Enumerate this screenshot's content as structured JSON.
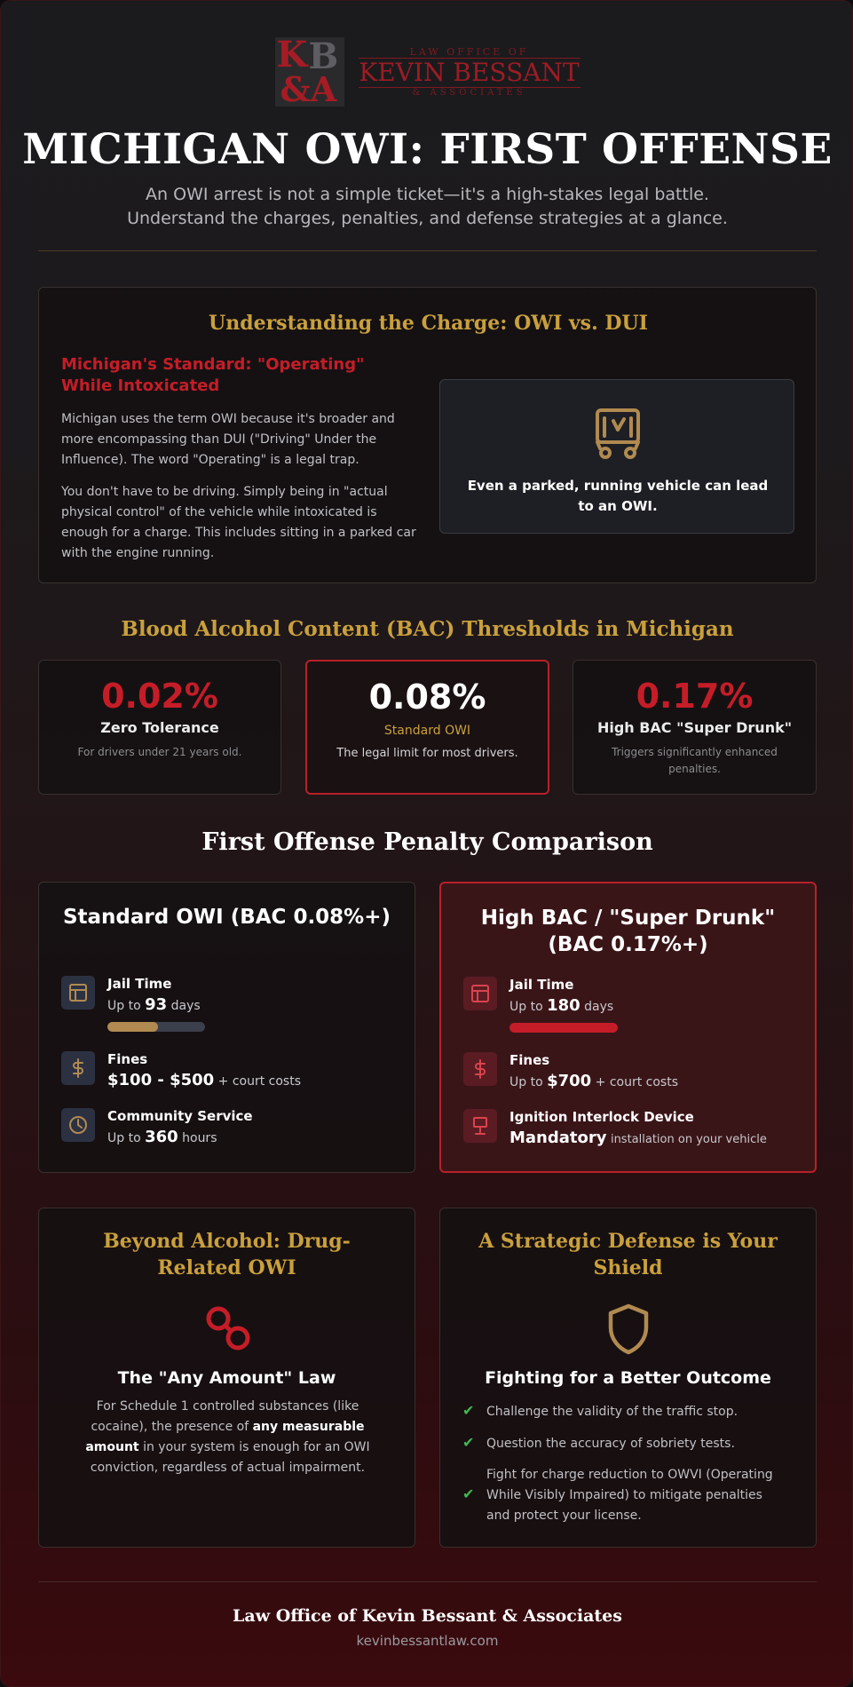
{
  "logo": {
    "monogram_k": "K",
    "monogram_b": "B",
    "monogram_amp": "&A",
    "line1": "LAW OFFICE OF",
    "line2": "KEVIN BESSANT",
    "line3": "& ASSOCIATES"
  },
  "header": {
    "title": "MICHIGAN OWI: FIRST OFFENSE",
    "subtitle_line1": "An OWI arrest is not a simple ticket—it's a high-stakes legal battle.",
    "subtitle_line2": "Understand the charges, penalties, and defense strategies at a glance."
  },
  "charge_section": {
    "title": "Understanding the Charge: OWI vs. DUI",
    "subtitle": "Michigan's Standard: \"Operating\" While Intoxicated",
    "paragraph1": "Michigan uses the term OWI because it's broader and more encompassing than DUI (\"Driving\" Under the Influence). The word \"Operating\" is a legal trap.",
    "paragraph2": "You don't have to be driving. Simply being in \"actual physical control\" of the vehicle while intoxicated is enough for a charge. This includes sitting in a parked car with the engine running.",
    "callout": "Even a parked, running vehicle can lead to an OWI.",
    "callout_icon": "parked-car-icon"
  },
  "bac_section": {
    "title": "Blood Alcohol Content (BAC) Thresholds in Michigan",
    "cards": [
      {
        "value": "0.02%",
        "label": "Zero Tolerance",
        "description": "For drivers under 21 years old."
      },
      {
        "value": "0.08%",
        "label": "Standard OWI",
        "description": "The legal limit for most drivers."
      },
      {
        "value": "0.17%",
        "label": "High BAC \"Super Drunk\"",
        "description": "Triggers significantly enhanced penalties."
      }
    ]
  },
  "penalty_section": {
    "title": "First Offense Penalty Comparison",
    "standard": {
      "heading": "Standard OWI (BAC 0.08%+)",
      "jail_label": "Jail Time",
      "jail_prefix": "Up to",
      "jail_value": "93",
      "jail_suffix": "days",
      "jail_fraction": 0.52,
      "fines_label": "Fines",
      "fines_value": "$100 - $500",
      "fines_suffix": "+ court costs",
      "service_label": "Community Service",
      "service_prefix": "Up to",
      "service_value": "360",
      "service_suffix": "hours"
    },
    "high": {
      "heading": "High BAC / \"Super Drunk\" (BAC 0.17%+)",
      "jail_label": "Jail Time",
      "jail_prefix": "Up to",
      "jail_value": "180",
      "jail_suffix": "days",
      "jail_fraction": 1.0,
      "fines_label": "Fines",
      "fines_prefix": "Up to",
      "fines_value": "$700",
      "fines_suffix": "+ court costs",
      "interlock_label": "Ignition Interlock Device",
      "interlock_value": "Mandatory",
      "interlock_suffix": "installation on your vehicle"
    }
  },
  "drug_section": {
    "title": "Beyond Alcohol: Drug-Related OWI",
    "subheading": "The \"Any Amount\" Law",
    "text_before": "For Schedule 1 controlled substances (like cocaine), the presence of",
    "text_bold": "any measurable amount",
    "text_after": "in your system is enough for an OWI conviction, regardless of actual impairment."
  },
  "defense_section": {
    "title": "A Strategic Defense is Your Shield",
    "subheading": "Fighting for a Better Outcome",
    "items": [
      "Challenge the validity of the traffic stop.",
      "Question the accuracy of sobriety tests.",
      "Fight for charge reduction to OWVI (Operating While Visibly Impaired) to mitigate penalties and protect your license."
    ]
  },
  "footer": {
    "firm": "Law Office of Kevin Bessant & Associates",
    "website": "kevinbessantlaw.com"
  },
  "colors": {
    "gold": "#c9a03c",
    "red": "#c51d28",
    "check_green": "#3fb950",
    "bar_tan": "#b08a50"
  }
}
